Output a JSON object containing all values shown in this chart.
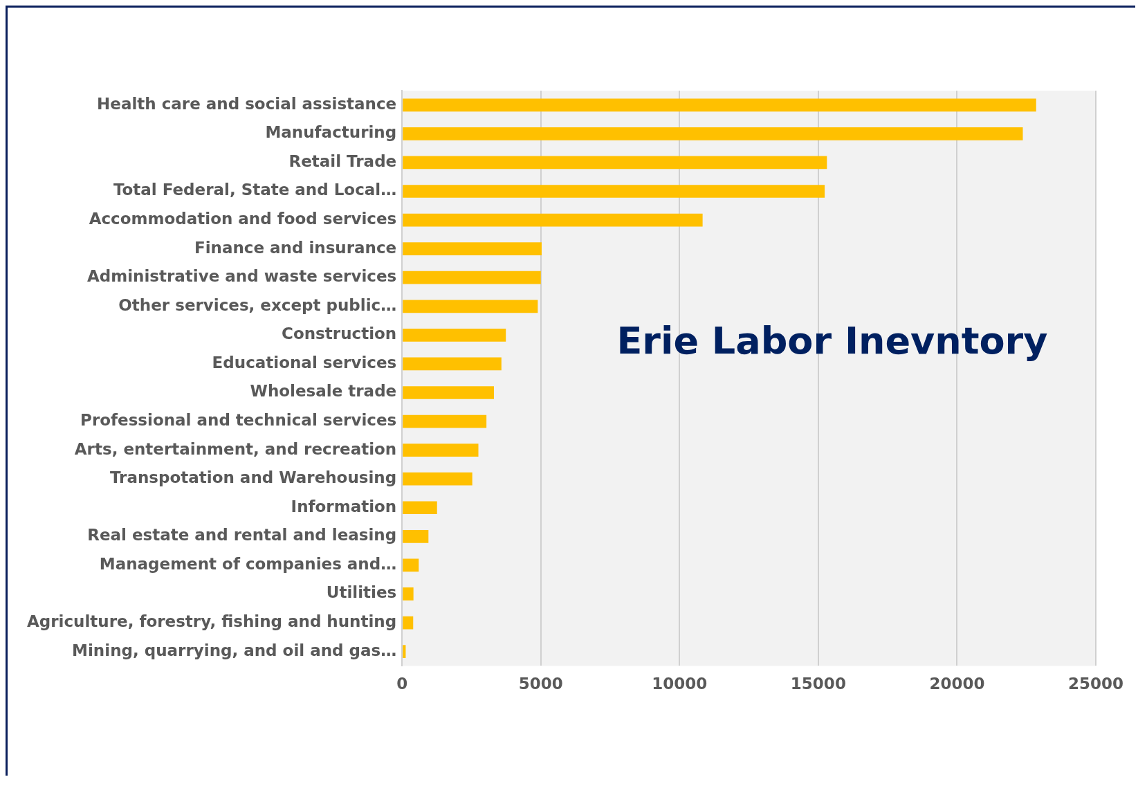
{
  "chart_data": {
    "type": "bar",
    "orientation": "horizontal",
    "title": "Erie Labor Inevntory",
    "categories": [
      "Health care and social assistance",
      "Manufacturing",
      "Retail Trade",
      "Total Federal, State and Local…",
      "Accommodation and food services",
      "Finance and insurance",
      "Administrative and waste services",
      "Other services, except public…",
      "Construction",
      "Educational services",
      "Wholesale trade",
      "Professional and technical services",
      "Arts, entertainment, and recreation",
      "Transpotation and Warehousing",
      "Information",
      "Real estate and rental and leasing",
      "Management of companies and…",
      "Utilities",
      "Agriculture, forestry, fishing and hunting",
      "Mining, quarrying, and oil and gas…"
    ],
    "values": [
      22850,
      22370,
      15310,
      15230,
      10830,
      5030,
      5000,
      4890,
      3740,
      3580,
      3310,
      3040,
      2750,
      2530,
      1260,
      950,
      600,
      410,
      400,
      130
    ],
    "color": "#ffc000",
    "xlim": [
      0,
      25000
    ],
    "xticks": [
      0,
      5000,
      10000,
      15000,
      20000,
      25000
    ],
    "grid": "x"
  }
}
